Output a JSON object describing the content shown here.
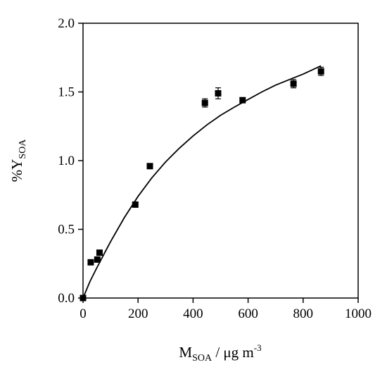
{
  "chart_data": {
    "type": "scatter",
    "title": "",
    "xlabel": {
      "main": "M",
      "sub": "SOA",
      "rest": " / μg m",
      "sup": "-3"
    },
    "ylabel": {
      "main": "%Y",
      "sub": "SOA"
    },
    "xlim": [
      0,
      1000
    ],
    "ylim": [
      0,
      2.0
    ],
    "x_ticks": [
      0,
      200,
      400,
      600,
      800,
      1000
    ],
    "x_tick_labels": [
      "0",
      "200",
      "400",
      "600",
      "800",
      "1000"
    ],
    "y_ticks": [
      0,
      0.5,
      1.0,
      1.5,
      2.0
    ],
    "y_tick_labels": [
      "0.0",
      "0.5",
      "1.0",
      "1.5",
      "2.0"
    ],
    "grid": false,
    "legend": "none",
    "series": [
      {
        "kind": "points",
        "marker": "square",
        "color": "#000000",
        "points": [
          {
            "x": 0,
            "y": 0.0,
            "err": 0.01
          },
          {
            "x": 28,
            "y": 0.26,
            "err": 0.01
          },
          {
            "x": 52,
            "y": 0.28,
            "err": 0.015
          },
          {
            "x": 60,
            "y": 0.33,
            "err": 0.015
          },
          {
            "x": 190,
            "y": 0.68,
            "err": 0.01
          },
          {
            "x": 243,
            "y": 0.96,
            "err": 0.01
          },
          {
            "x": 443,
            "y": 1.42,
            "err": 0.03
          },
          {
            "x": 491,
            "y": 1.49,
            "err": 0.04
          },
          {
            "x": 580,
            "y": 1.44,
            "err": 0.015
          },
          {
            "x": 765,
            "y": 1.56,
            "err": 0.03
          },
          {
            "x": 865,
            "y": 1.65,
            "err": 0.03
          }
        ]
      },
      {
        "kind": "fit-curve",
        "color": "#000000",
        "points": [
          {
            "x": 0,
            "y": 0.0
          },
          {
            "x": 25,
            "y": 0.12
          },
          {
            "x": 50,
            "y": 0.22
          },
          {
            "x": 75,
            "y": 0.315
          },
          {
            "x": 100,
            "y": 0.41
          },
          {
            "x": 150,
            "y": 0.585
          },
          {
            "x": 200,
            "y": 0.74
          },
          {
            "x": 250,
            "y": 0.875
          },
          {
            "x": 300,
            "y": 0.99
          },
          {
            "x": 350,
            "y": 1.09
          },
          {
            "x": 400,
            "y": 1.18
          },
          {
            "x": 450,
            "y": 1.26
          },
          {
            "x": 500,
            "y": 1.33
          },
          {
            "x": 550,
            "y": 1.39
          },
          {
            "x": 600,
            "y": 1.445
          },
          {
            "x": 650,
            "y": 1.5
          },
          {
            "x": 700,
            "y": 1.55
          },
          {
            "x": 750,
            "y": 1.59
          },
          {
            "x": 800,
            "y": 1.63
          },
          {
            "x": 865,
            "y": 1.69
          }
        ]
      }
    ]
  }
}
